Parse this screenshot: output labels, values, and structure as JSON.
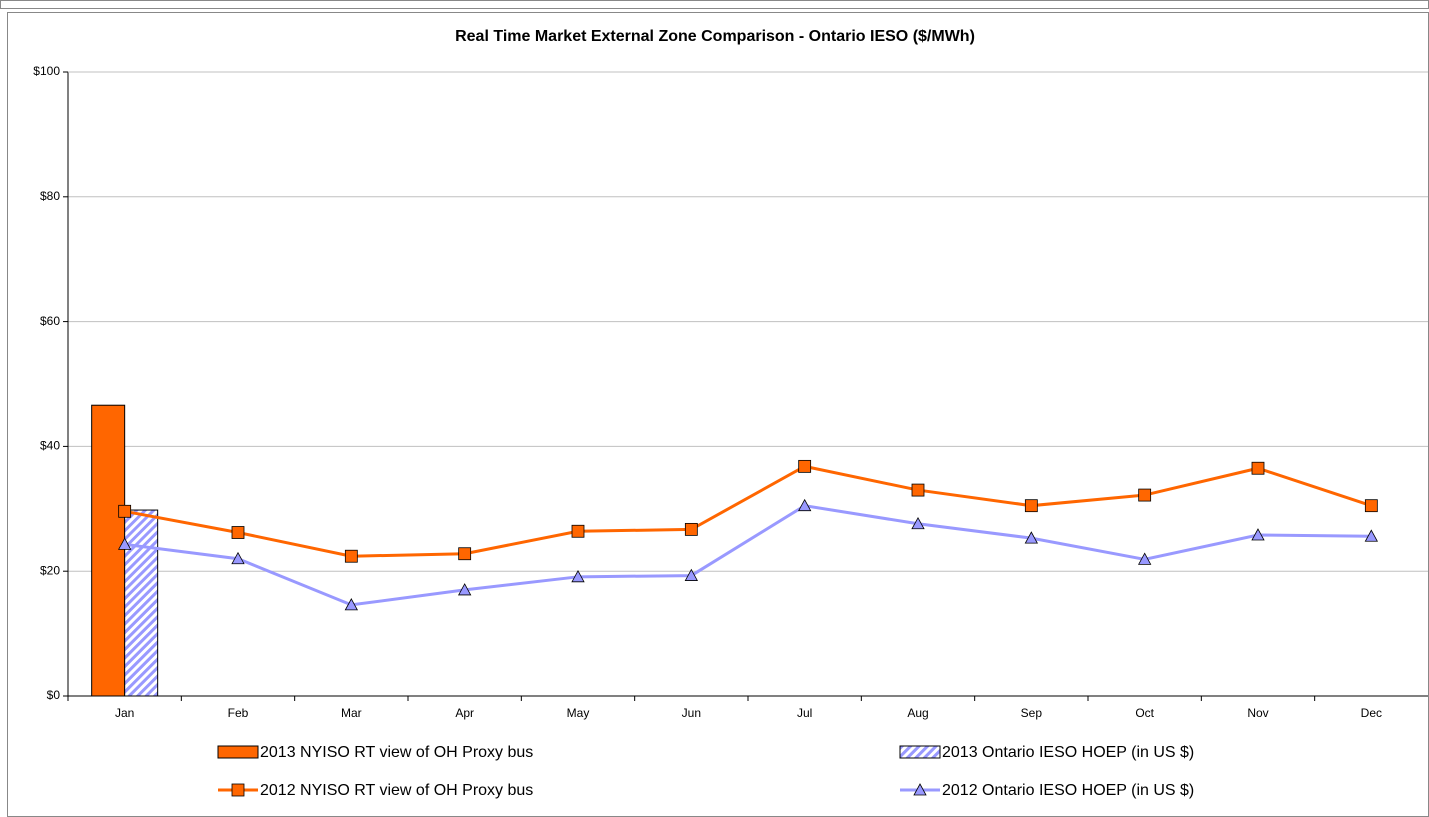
{
  "chart_data": {
    "type": "combo",
    "title": "Real Time Market External Zone Comparison - Ontario IESO ($/MWh)",
    "categories": [
      "Jan",
      "Feb",
      "Mar",
      "Apr",
      "May",
      "Jun",
      "Jul",
      "Aug",
      "Sep",
      "Oct",
      "Nov",
      "Dec"
    ],
    "ylim": [
      0,
      100
    ],
    "yticks": [
      {
        "value": 0,
        "label": "$0"
      },
      {
        "value": 20,
        "label": "$20"
      },
      {
        "value": 40,
        "label": "$40"
      },
      {
        "value": 60,
        "label": "$60"
      },
      {
        "value": 80,
        "label": "$80"
      },
      {
        "value": 100,
        "label": "$100"
      }
    ],
    "grid": true,
    "legend": "bottom",
    "series": [
      {
        "name": "2013 NYISO RT view of OH Proxy bus",
        "type": "bar",
        "color": "#ff6600",
        "values": [
          46.6,
          null,
          null,
          null,
          null,
          null,
          null,
          null,
          null,
          null,
          null,
          null
        ]
      },
      {
        "name": "2013 Ontario IESO HOEP (in US $)",
        "type": "bar",
        "hatch": true,
        "color": "#9999ff",
        "values": [
          29.8,
          null,
          null,
          null,
          null,
          null,
          null,
          null,
          null,
          null,
          null,
          null
        ]
      },
      {
        "name": "2012 NYISO RT view of OH Proxy bus",
        "type": "line",
        "marker": "square",
        "color": "#ff6600",
        "values": [
          29.6,
          26.2,
          22.4,
          22.8,
          26.4,
          26.7,
          36.8,
          33.0,
          30.5,
          32.2,
          36.5,
          30.5
        ]
      },
      {
        "name": "2012 Ontario IESO HOEP (in US $)",
        "type": "line",
        "marker": "triangle",
        "color": "#9999ff",
        "values": [
          24.3,
          22.0,
          14.6,
          17.0,
          19.1,
          19.3,
          30.5,
          27.6,
          25.3,
          21.9,
          25.8,
          25.6
        ]
      }
    ]
  }
}
